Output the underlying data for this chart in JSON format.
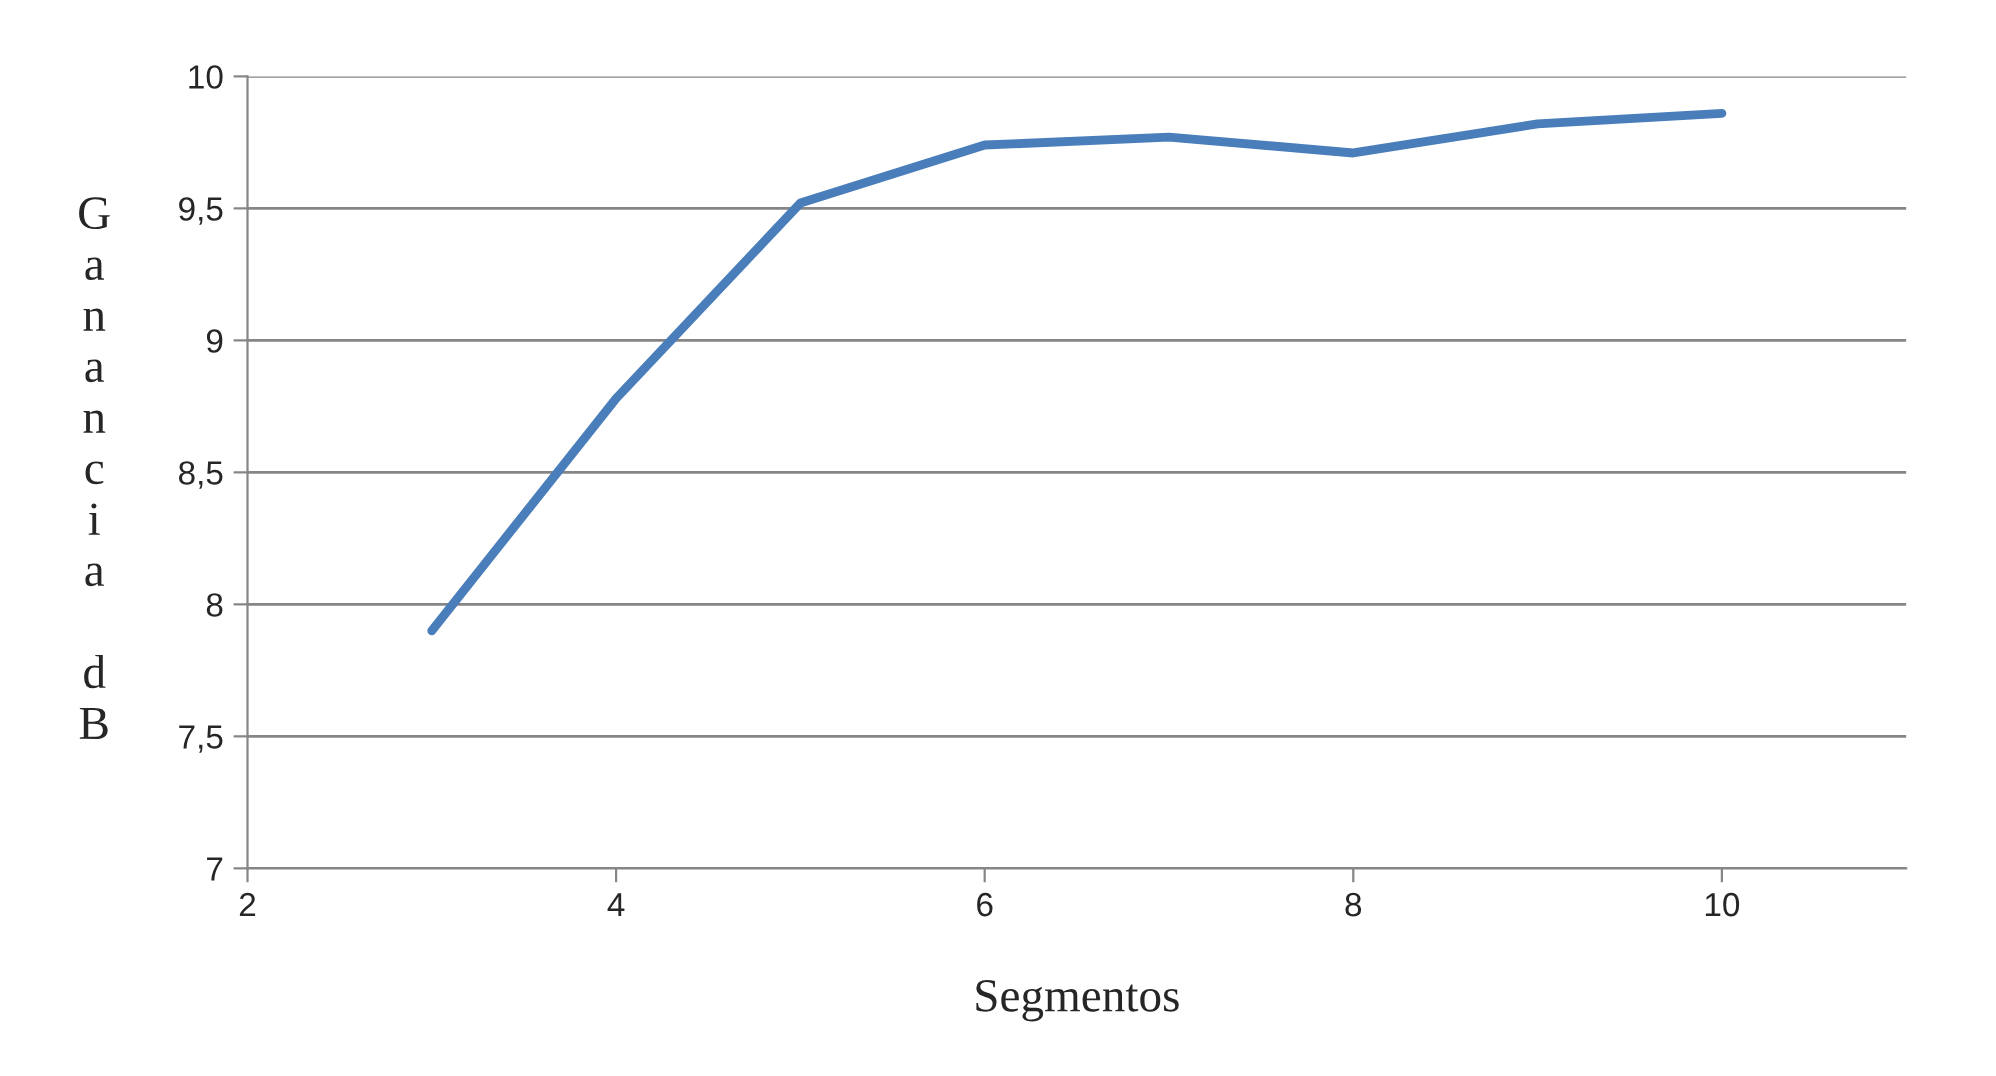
{
  "chart_data": {
    "type": "line",
    "xlabel": "Segmentos",
    "ylabel": "Ganancia dB",
    "x": [
      3,
      4,
      5,
      6,
      7,
      8,
      9,
      10
    ],
    "series": [
      {
        "color": "#4a7ebb",
        "values": [
          7.9,
          8.78,
          9.52,
          9.74,
          9.77,
          9.71,
          9.82,
          9.86
        ]
      }
    ],
    "xlim": [
      2,
      11
    ],
    "xticks": [
      2,
      4,
      6,
      8,
      10
    ],
    "ylim": [
      7,
      10
    ],
    "yticks": [
      7,
      {
        "value": 7.5,
        "label": "7,5"
      },
      8,
      {
        "value": 8.5,
        "label": "8,5"
      },
      9,
      {
        "value": 9.5,
        "label": "9,5"
      },
      10
    ],
    "grid": "y",
    "marker": "none",
    "line_style": "solid"
  }
}
